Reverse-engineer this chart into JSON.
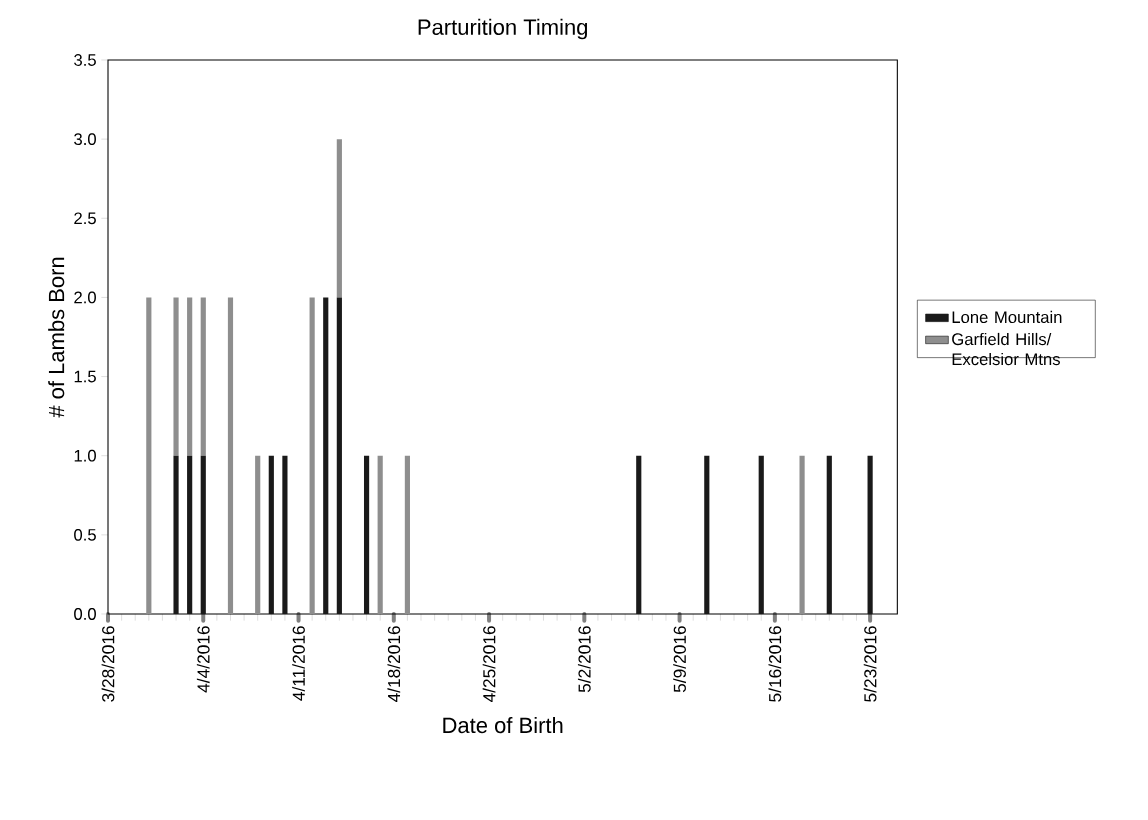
{
  "chart_data": {
    "type": "bar",
    "title": "Parturition Timing",
    "xlabel": "Date of Birth",
    "ylabel": "# of Lambs Born",
    "x": [
      "2016-03-31",
      "2016-04-02",
      "2016-04-03",
      "2016-04-04",
      "2016-04-06",
      "2016-04-08",
      "2016-04-09",
      "2016-04-10",
      "2016-04-12",
      "2016-04-13",
      "2016-04-14",
      "2016-04-16",
      "2016-04-17",
      "2016-04-19",
      "2016-05-06",
      "2016-05-11",
      "2016-05-15",
      "2016-05-18",
      "2016-05-20",
      "2016-05-23"
    ],
    "series": [
      {
        "name": "Lone Mountain",
        "color": "#1a1a1a",
        "values": [
          null,
          1,
          1,
          1,
          null,
          null,
          1,
          1,
          null,
          2,
          2,
          1,
          null,
          null,
          1,
          1,
          1,
          null,
          1,
          1
        ]
      },
      {
        "name": "Garfield Hills/ Excelsior Mtns",
        "color": "#8e8e8e",
        "values": [
          2,
          1,
          1,
          1,
          2,
          1,
          null,
          null,
          2,
          null,
          1,
          null,
          1,
          1,
          null,
          null,
          null,
          1,
          null,
          null
        ]
      }
    ],
    "stacked": true,
    "legend": "right",
    "xlim": [
      "2016-03-28",
      "2016-05-25"
    ],
    "xticks": [
      {
        "value": "2016-03-28",
        "label": "3/28/2016"
      },
      {
        "value": "2016-04-04",
        "label": "4/4/2016"
      },
      {
        "value": "2016-04-11",
        "label": "4/11/2016"
      },
      {
        "value": "2016-04-18",
        "label": "4/18/2016"
      },
      {
        "value": "2016-04-25",
        "label": "4/25/2016"
      },
      {
        "value": "2016-05-02",
        "label": "5/2/2016"
      },
      {
        "value": "2016-05-09",
        "label": "5/9/2016"
      },
      {
        "value": "2016-05-16",
        "label": "5/16/2016"
      },
      {
        "value": "2016-05-23",
        "label": "5/23/2016"
      }
    ],
    "ylim": [
      0,
      3.5
    ],
    "yticks": [
      {
        "value": 0,
        "label": "0.0"
      },
      {
        "value": 0.5,
        "label": "0.5"
      },
      {
        "value": 1,
        "label": "1.0"
      },
      {
        "value": 1.5,
        "label": "1.5"
      },
      {
        "value": 2,
        "label": "2.0"
      },
      {
        "value": 2.5,
        "label": "2.5"
      },
      {
        "value": 3,
        "label": "3.0"
      },
      {
        "value": 3.5,
        "label": "3.5"
      }
    ]
  }
}
